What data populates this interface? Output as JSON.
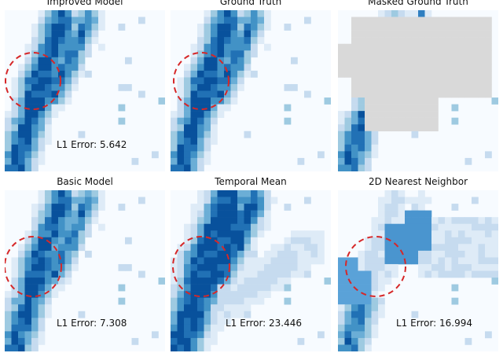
{
  "colors": {
    "background_cell": "#f7fbff",
    "masked": "#d9d9d9",
    "circle": "#d62728",
    "scale": [
      "#f7fbff",
      "#deebf7",
      "#c6dbef",
      "#9ecae1",
      "#6baed6",
      "#4292c6",
      "#2171b5",
      "#08519c"
    ]
  },
  "panels": [
    {
      "id": "improved",
      "title": "Improved Model",
      "error": "L1 Error: 5.642",
      "style": "pred",
      "circle": true
    },
    {
      "id": "truth",
      "title": "Ground Truth",
      "error": "",
      "style": "truth",
      "circle": true
    },
    {
      "id": "masked",
      "title": "Masked Ground Truth",
      "error": "",
      "style": "masked",
      "circle": false
    },
    {
      "id": "basic",
      "title": "Basic Model",
      "error": "L1 Error: 7.308",
      "style": "basic",
      "circle": true
    },
    {
      "id": "temporal",
      "title": "Temporal Mean",
      "error": "L1 Error: 23.446",
      "style": "temporal",
      "circle": true
    },
    {
      "id": "nn",
      "title": "2D Nearest Neighbor",
      "error": "L1 Error: 16.994",
      "style": "nn",
      "circle": true
    }
  ]
}
